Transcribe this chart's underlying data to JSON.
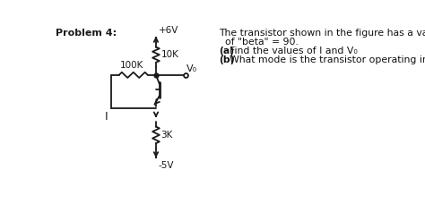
{
  "title_left": "Problem 4:",
  "text_right_line1": "The transistor shown in the figure has a value",
  "text_right_line2": "  of \"beta\" = 90.",
  "text_right_line3": "(a) Find the values of I and V₀",
  "text_right_line4": "(b) What mode is the transistor operating in?",
  "bg_color": "#ffffff",
  "line_color": "#1a1a1a",
  "label_6v": "+6V",
  "label_10k": "10K",
  "label_100k": "100K",
  "label_3k": "3K",
  "label_5v": "-5V",
  "label_vo": "V₀",
  "label_I": "I"
}
